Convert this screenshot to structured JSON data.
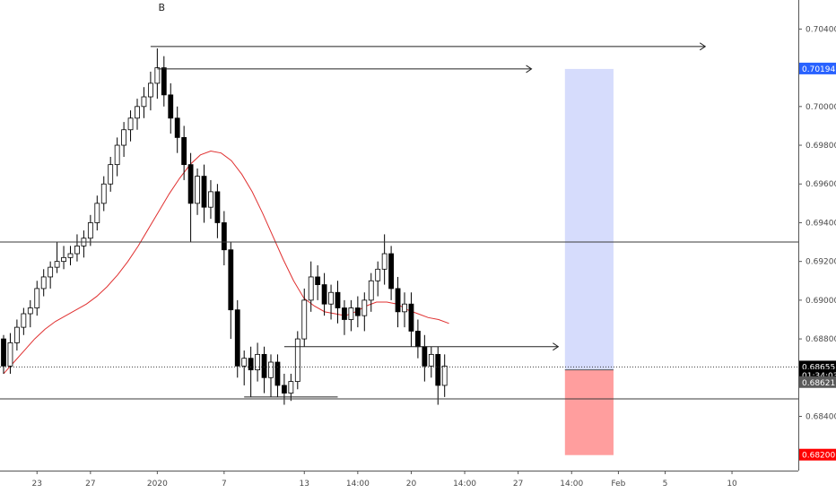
{
  "chart_data": {
    "type": "candlestick",
    "annotations": {
      "pattern_label": "B"
    },
    "y_axis": {
      "min": 0.6812,
      "max": 0.7055,
      "ticks": [
        "0.70400",
        "0.70000",
        "0.69800",
        "0.69600",
        "0.69400",
        "0.69200",
        "0.69000",
        "0.68800",
        "0.68400"
      ],
      "tick_values": [
        0.704,
        0.7,
        0.698,
        0.696,
        0.694,
        0.692,
        0.69,
        0.688,
        0.684
      ],
      "price_labels": [
        {
          "text": "0.70194",
          "value": 0.70194,
          "color": "#2962ff"
        },
        {
          "text": "0.68655",
          "value": 0.68655,
          "color": "#000000"
        },
        {
          "text": "01:34:03",
          "value": 0.68648,
          "color": "#000000"
        },
        {
          "text": "0.68621",
          "value": 0.68621,
          "color": "#5a5a5a"
        },
        {
          "text": "0.68200",
          "value": 0.682,
          "color": "#ff0000"
        }
      ]
    },
    "x_axis": {
      "ticks": [
        {
          "label": "23",
          "index": 5
        },
        {
          "label": "27",
          "index": 13
        },
        {
          "label": "2020",
          "index": 23
        },
        {
          "label": "7",
          "index": 33
        },
        {
          "label": "13",
          "index": 45
        },
        {
          "label": "14:00",
          "index": 53
        },
        {
          "label": "20",
          "index": 61
        },
        {
          "label": "14:00",
          "index": 69
        },
        {
          "label": "27",
          "index": 77
        },
        {
          "label": "14:00",
          "index": 85
        },
        {
          "label": "Feb",
          "index": 92
        },
        {
          "label": "5",
          "index": 99
        },
        {
          "label": "10",
          "index": 109
        }
      ]
    },
    "candles": [
      [
        0.688,
        0.6866,
        0.6882,
        0.6862
      ],
      [
        0.6866,
        0.6878,
        0.6883,
        0.6862
      ],
      [
        0.6878,
        0.6886,
        0.689,
        0.6874
      ],
      [
        0.6886,
        0.6893,
        0.6896,
        0.6882
      ],
      [
        0.6893,
        0.6896,
        0.69,
        0.6886
      ],
      [
        0.6896,
        0.6906,
        0.691,
        0.6892
      ],
      [
        0.6906,
        0.6912,
        0.6916,
        0.6902
      ],
      [
        0.6912,
        0.6917,
        0.692,
        0.6906
      ],
      [
        0.6917,
        0.692,
        0.693,
        0.6914
      ],
      [
        0.692,
        0.6922,
        0.6928,
        0.6916
      ],
      [
        0.6922,
        0.6924,
        0.6928,
        0.6918
      ],
      [
        0.6924,
        0.6928,
        0.6934,
        0.692
      ],
      [
        0.6928,
        0.6932,
        0.6936,
        0.6922
      ],
      [
        0.6932,
        0.694,
        0.6944,
        0.6928
      ],
      [
        0.694,
        0.695,
        0.6954,
        0.6936
      ],
      [
        0.695,
        0.696,
        0.6964,
        0.6946
      ],
      [
        0.696,
        0.697,
        0.6974,
        0.6956
      ],
      [
        0.697,
        0.698,
        0.6984,
        0.6964
      ],
      [
        0.698,
        0.6988,
        0.6992,
        0.6974
      ],
      [
        0.6988,
        0.6994,
        0.6998,
        0.6982
      ],
      [
        0.6994,
        0.7,
        0.7004,
        0.6988
      ],
      [
        0.7,
        0.7005,
        0.701,
        0.6994
      ],
      [
        0.7005,
        0.7012,
        0.7018,
        0.6998
      ],
      [
        0.7012,
        0.702,
        0.703,
        0.7004
      ],
      [
        0.702,
        0.7006,
        0.7026,
        0.7
      ],
      [
        0.7006,
        0.6994,
        0.7012,
        0.6986
      ],
      [
        0.6994,
        0.6984,
        0.7,
        0.6976
      ],
      [
        0.6984,
        0.697,
        0.699,
        0.6962
      ],
      [
        0.697,
        0.695,
        0.6976,
        0.693
      ],
      [
        0.695,
        0.6964,
        0.6968,
        0.6944
      ],
      [
        0.6964,
        0.6948,
        0.697,
        0.694
      ],
      [
        0.6948,
        0.6956,
        0.6962,
        0.6942
      ],
      [
        0.6956,
        0.694,
        0.696,
        0.6932
      ],
      [
        0.694,
        0.6926,
        0.6946,
        0.6918
      ],
      [
        0.6926,
        0.6895,
        0.693,
        0.688
      ],
      [
        0.6895,
        0.6866,
        0.69,
        0.686
      ],
      [
        0.6866,
        0.687,
        0.6874,
        0.6856
      ],
      [
        0.687,
        0.6864,
        0.6876,
        0.685
      ],
      [
        0.6864,
        0.6872,
        0.6878,
        0.6858
      ],
      [
        0.6872,
        0.686,
        0.6876,
        0.6852
      ],
      [
        0.686,
        0.6868,
        0.6872,
        0.685
      ],
      [
        0.6868,
        0.6856,
        0.6872,
        0.685
      ],
      [
        0.6856,
        0.6852,
        0.6862,
        0.6846
      ],
      [
        0.6852,
        0.6858,
        0.6862,
        0.6848
      ],
      [
        0.6858,
        0.688,
        0.6884,
        0.6854
      ],
      [
        0.688,
        0.69,
        0.6906,
        0.6876
      ],
      [
        0.69,
        0.6912,
        0.692,
        0.6894
      ],
      [
        0.6912,
        0.6908,
        0.6918,
        0.69
      ],
      [
        0.6908,
        0.6898,
        0.6914,
        0.6892
      ],
      [
        0.6898,
        0.6904,
        0.6908,
        0.689
      ],
      [
        0.6904,
        0.6896,
        0.691,
        0.6888
      ],
      [
        0.6896,
        0.689,
        0.69,
        0.6882
      ],
      [
        0.689,
        0.6896,
        0.69,
        0.6884
      ],
      [
        0.6896,
        0.6892,
        0.6902,
        0.6886
      ],
      [
        0.6892,
        0.69,
        0.6904,
        0.6884
      ],
      [
        0.69,
        0.691,
        0.6914,
        0.6894
      ],
      [
        0.691,
        0.6916,
        0.692,
        0.6902
      ],
      [
        0.6916,
        0.6924,
        0.6934,
        0.6908
      ],
      [
        0.6924,
        0.6906,
        0.6928,
        0.69
      ],
      [
        0.6906,
        0.6894,
        0.6912,
        0.6886
      ],
      [
        0.6894,
        0.6898,
        0.6904,
        0.6886
      ],
      [
        0.6898,
        0.6884,
        0.6904,
        0.6876
      ],
      [
        0.6884,
        0.6876,
        0.689,
        0.687
      ],
      [
        0.6876,
        0.6866,
        0.6882,
        0.6858
      ],
      [
        0.6866,
        0.6872,
        0.6876,
        0.686
      ],
      [
        0.6872,
        0.6856,
        0.6876,
        0.6846
      ],
      [
        0.6856,
        0.6866,
        0.6872,
        0.685
      ]
    ],
    "moving_average": {
      "color": "#e03030",
      "values": [
        0.6862,
        0.6868,
        0.6874,
        0.688,
        0.6885,
        0.6889,
        0.6892,
        0.6895,
        0.6898,
        0.6902,
        0.6907,
        0.6913,
        0.692,
        0.6928,
        0.6937,
        0.6946,
        0.6955,
        0.6963,
        0.697,
        0.6975,
        0.6977,
        0.6976,
        0.6972,
        0.6965,
        0.6956,
        0.6945,
        0.6933,
        0.6921,
        0.691,
        0.6901,
        0.6897,
        0.6894,
        0.6893,
        0.6892,
        0.6894,
        0.6897,
        0.6899,
        0.6899,
        0.6898,
        0.6895,
        0.6893,
        0.6891,
        0.689,
        0.6888
      ]
    },
    "horizontal_lines": [
      {
        "value": 0.693,
        "style": "solid",
        "color": "#3a3a3a"
      },
      {
        "value": 0.68655,
        "style": "dotted",
        "color": "#3a3a3a"
      },
      {
        "value": 0.6849,
        "style": "solid",
        "color": "#3a3a3a"
      }
    ],
    "rays": [
      {
        "value": 0.7031,
        "from_index": 22,
        "to_index": 105
      },
      {
        "value": 0.70194,
        "from_index": 23,
        "to_index": 79
      },
      {
        "value": 0.6876,
        "from_index": 42,
        "to_index": 83
      },
      {
        "value": 0.685,
        "from_index": 36,
        "to_index": 50
      }
    ],
    "position": {
      "from_index": 84,
      "to_index": 91,
      "entry": 0.6864,
      "target": 0.70194,
      "stop": 0.682,
      "profit_color": "#d6dcfc",
      "loss_color": "#ff9e9e"
    }
  }
}
